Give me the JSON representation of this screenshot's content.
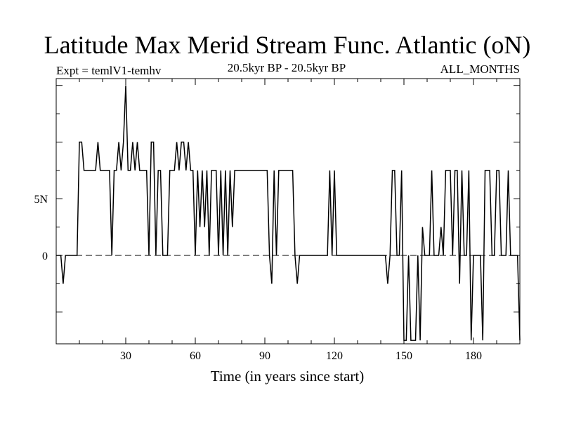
{
  "chart_data": {
    "type": "line",
    "title": "Latitude Max Merid Stream Func. Atlantic (oN)",
    "subtitle_left": "Expt = temlV1-temhv",
    "subtitle_center": "20.5kyr BP - 20.5kyr BP",
    "subtitle_right": "ALL_MONTHS",
    "xlabel": "Time (in years since start)",
    "ylabel": "",
    "xlim": [
      0,
      200
    ],
    "ylim": [
      -7.8,
      15.6
    ],
    "grid": false,
    "legend": "none",
    "zero_line": "dashed",
    "x_ticks": [
      {
        "value": 30,
        "label": "30"
      },
      {
        "value": 60,
        "label": "60"
      },
      {
        "value": 90,
        "label": "90"
      },
      {
        "value": 120,
        "label": "120"
      },
      {
        "value": 150,
        "label": "150"
      },
      {
        "value": 180,
        "label": "180"
      }
    ],
    "y_ticks": [
      {
        "value": 0,
        "label": "0"
      },
      {
        "value": 5,
        "label": "5N"
      }
    ],
    "series": [
      {
        "color": "#000000",
        "points": [
          [
            0,
            0
          ],
          [
            1,
            0
          ],
          [
            2,
            0
          ],
          [
            3,
            -2.5
          ],
          [
            4,
            0
          ],
          [
            5,
            0
          ],
          [
            6,
            0
          ],
          [
            7,
            0
          ],
          [
            8,
            0
          ],
          [
            9,
            0
          ],
          [
            10,
            10
          ],
          [
            11,
            10
          ],
          [
            12,
            7.5
          ],
          [
            13,
            7.5
          ],
          [
            14,
            7.5
          ],
          [
            15,
            7.5
          ],
          [
            16,
            7.5
          ],
          [
            17,
            7.5
          ],
          [
            18,
            10
          ],
          [
            19,
            7.5
          ],
          [
            20,
            7.5
          ],
          [
            21,
            7.5
          ],
          [
            22,
            7.5
          ],
          [
            23,
            7.5
          ],
          [
            24,
            0
          ],
          [
            25,
            7.5
          ],
          [
            26,
            7.5
          ],
          [
            27,
            10
          ],
          [
            28,
            7.5
          ],
          [
            29,
            10
          ],
          [
            30,
            15
          ],
          [
            31,
            7.5
          ],
          [
            32,
            7.5
          ],
          [
            33,
            10
          ],
          [
            34,
            7.5
          ],
          [
            35,
            10
          ],
          [
            36,
            7.5
          ],
          [
            37,
            7.5
          ],
          [
            38,
            7.5
          ],
          [
            39,
            7.5
          ],
          [
            40,
            0
          ],
          [
            41,
            10
          ],
          [
            42,
            10
          ],
          [
            43,
            0
          ],
          [
            44,
            7.5
          ],
          [
            45,
            7.5
          ],
          [
            46,
            0
          ],
          [
            47,
            0
          ],
          [
            48,
            0
          ],
          [
            49,
            7.5
          ],
          [
            50,
            7.5
          ],
          [
            51,
            7.5
          ],
          [
            52,
            10
          ],
          [
            53,
            7.5
          ],
          [
            54,
            10
          ],
          [
            55,
            10
          ],
          [
            56,
            7.5
          ],
          [
            57,
            10
          ],
          [
            58,
            7.5
          ],
          [
            59,
            7.5
          ],
          [
            60,
            0
          ],
          [
            61,
            7.5
          ],
          [
            62,
            2.5
          ],
          [
            63,
            7.5
          ],
          [
            64,
            2.5
          ],
          [
            65,
            7.5
          ],
          [
            66,
            0
          ],
          [
            67,
            7.5
          ],
          [
            68,
            7.5
          ],
          [
            69,
            7.5
          ],
          [
            70,
            0
          ],
          [
            71,
            7.5
          ],
          [
            72,
            0
          ],
          [
            73,
            7.5
          ],
          [
            74,
            0
          ],
          [
            75,
            7.5
          ],
          [
            76,
            2.5
          ],
          [
            77,
            7.5
          ],
          [
            78,
            7.5
          ],
          [
            79,
            7.5
          ],
          [
            80,
            7.5
          ],
          [
            81,
            7.5
          ],
          [
            82,
            7.5
          ],
          [
            83,
            7.5
          ],
          [
            84,
            7.5
          ],
          [
            85,
            7.5
          ],
          [
            86,
            7.5
          ],
          [
            87,
            7.5
          ],
          [
            88,
            7.5
          ],
          [
            89,
            7.5
          ],
          [
            90,
            7.5
          ],
          [
            91,
            7.5
          ],
          [
            92,
            0
          ],
          [
            93,
            -2.5
          ],
          [
            94,
            7.5
          ],
          [
            95,
            0
          ],
          [
            96,
            7.5
          ],
          [
            97,
            7.5
          ],
          [
            98,
            7.5
          ],
          [
            99,
            7.5
          ],
          [
            100,
            7.5
          ],
          [
            101,
            7.5
          ],
          [
            102,
            7.5
          ],
          [
            103,
            0
          ],
          [
            104,
            -2.5
          ],
          [
            105,
            0
          ],
          [
            106,
            0
          ],
          [
            107,
            0
          ],
          [
            108,
            0
          ],
          [
            109,
            0
          ],
          [
            110,
            0
          ],
          [
            111,
            0
          ],
          [
            112,
            0
          ],
          [
            113,
            0
          ],
          [
            114,
            0
          ],
          [
            115,
            0
          ],
          [
            116,
            0
          ],
          [
            117,
            0
          ],
          [
            118,
            7.5
          ],
          [
            119,
            0
          ],
          [
            120,
            7.5
          ],
          [
            121,
            0
          ],
          [
            122,
            0
          ],
          [
            123,
            0
          ],
          [
            124,
            0
          ],
          [
            125,
            0
          ],
          [
            126,
            0
          ],
          [
            127,
            0
          ],
          [
            128,
            0
          ],
          [
            129,
            0
          ],
          [
            130,
            0
          ],
          [
            131,
            0
          ],
          [
            132,
            0
          ],
          [
            133,
            0
          ],
          [
            134,
            0
          ],
          [
            135,
            0
          ],
          [
            136,
            0
          ],
          [
            137,
            0
          ],
          [
            138,
            0
          ],
          [
            139,
            0
          ],
          [
            140,
            0
          ],
          [
            141,
            0
          ],
          [
            142,
            0
          ],
          [
            143,
            -2.5
          ],
          [
            144,
            0
          ],
          [
            145,
            7.5
          ],
          [
            146,
            7.5
          ],
          [
            147,
            0
          ],
          [
            148,
            0
          ],
          [
            149,
            7.5
          ],
          [
            150,
            -7.5
          ],
          [
            151,
            -7.5
          ],
          [
            152,
            0
          ],
          [
            153,
            -7.5
          ],
          [
            154,
            -7.5
          ],
          [
            155,
            -7.5
          ],
          [
            156,
            0
          ],
          [
            157,
            -7.5
          ],
          [
            158,
            2.5
          ],
          [
            159,
            0
          ],
          [
            160,
            0
          ],
          [
            161,
            0
          ],
          [
            162,
            7.5
          ],
          [
            163,
            0
          ],
          [
            164,
            0
          ],
          [
            165,
            0
          ],
          [
            166,
            2.5
          ],
          [
            167,
            0
          ],
          [
            168,
            7.5
          ],
          [
            169,
            7.5
          ],
          [
            170,
            7.5
          ],
          [
            171,
            0
          ],
          [
            172,
            7.5
          ],
          [
            173,
            7.5
          ],
          [
            174,
            -2.5
          ],
          [
            175,
            7.5
          ],
          [
            176,
            0
          ],
          [
            177,
            0
          ],
          [
            178,
            7.5
          ],
          [
            179,
            -7.5
          ],
          [
            180,
            0
          ],
          [
            181,
            0
          ],
          [
            182,
            0
          ],
          [
            183,
            0
          ],
          [
            184,
            -7.5
          ],
          [
            185,
            7.5
          ],
          [
            186,
            7.5
          ],
          [
            187,
            7.5
          ],
          [
            188,
            0
          ],
          [
            189,
            0
          ],
          [
            190,
            7.5
          ],
          [
            191,
            7.5
          ],
          [
            192,
            0
          ],
          [
            193,
            0
          ],
          [
            194,
            0
          ],
          [
            195,
            7.5
          ],
          [
            196,
            0
          ],
          [
            197,
            0
          ],
          [
            198,
            0
          ],
          [
            199,
            0
          ],
          [
            200,
            -7.5
          ]
        ]
      }
    ]
  }
}
